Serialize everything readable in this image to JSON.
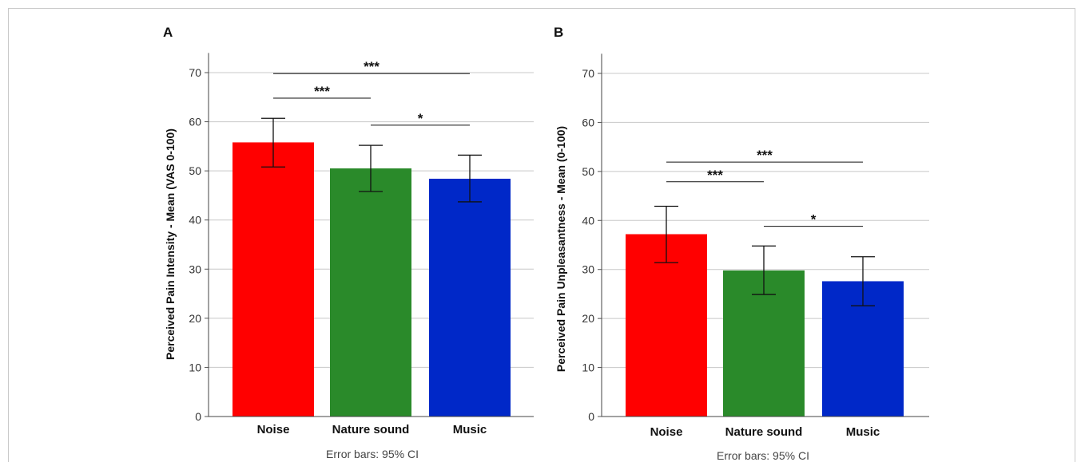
{
  "chart_data": [
    {
      "type": "bar",
      "panel_label": "A",
      "categories": [
        "Noise",
        "Nature sound",
        "Music"
      ],
      "values": [
        55.8,
        50.5,
        48.4
      ],
      "ci_low": [
        50.8,
        45.8,
        43.7
      ],
      "ci_high": [
        60.7,
        55.2,
        53.2
      ],
      "colors": [
        "#ff0000",
        "#2a8a2a",
        "#0028c8"
      ],
      "ylabel": "Perceived Pain Intensity - Mean (VAS 0-100)",
      "xlabel": "",
      "ylim": [
        0,
        74
      ],
      "yticks": [
        0,
        10,
        20,
        30,
        40,
        50,
        60,
        70
      ],
      "grid": true,
      "footnote": "Error bars: 95% CI",
      "comparisons": [
        {
          "from": 0,
          "to": 2,
          "level": 69.8,
          "label": "***"
        },
        {
          "from": 0,
          "to": 1,
          "level": 64.8,
          "label": "***"
        },
        {
          "from": 1,
          "to": 2,
          "level": 59.3,
          "label": "*"
        }
      ]
    },
    {
      "type": "bar",
      "panel_label": "B",
      "categories": [
        "Noise",
        "Nature sound",
        "Music"
      ],
      "values": [
        37.2,
        29.8,
        27.6
      ],
      "ci_low": [
        31.4,
        24.9,
        22.6
      ],
      "ci_high": [
        42.9,
        34.8,
        32.6
      ],
      "colors": [
        "#ff0000",
        "#2a8a2a",
        "#0028c8"
      ],
      "ylabel": "Perceived Pain Unpleasantness - Mean (0-100)",
      "xlabel": "",
      "ylim": [
        0,
        74
      ],
      "yticks": [
        0,
        10,
        20,
        30,
        40,
        50,
        60,
        70
      ],
      "grid": true,
      "footnote": "Error bars: 95% CI",
      "comparisons": [
        {
          "from": 0,
          "to": 2,
          "level": 51.9,
          "label": "***"
        },
        {
          "from": 0,
          "to": 1,
          "level": 47.9,
          "label": "***"
        },
        {
          "from": 1,
          "to": 2,
          "level": 38.8,
          "label": "*"
        }
      ]
    }
  ]
}
